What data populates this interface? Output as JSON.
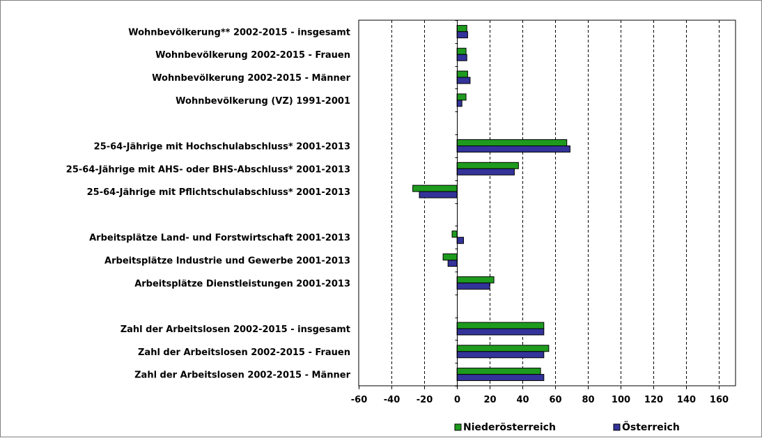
{
  "chart_data": {
    "type": "bar",
    "orientation": "horizontal",
    "categories": [
      "Wohnbevölkerung** 2002-2015 - insgesamt",
      "Wohnbevölkerung 2002-2015 - Frauen",
      "Wohnbevölkerung 2002-2015 - Männer",
      "Wohnbevölkerung (VZ) 1991-2001",
      "",
      "25-64-Jährige mit Hochschulabschluss* 2001-2013",
      "25-64-Jährige mit AHS- oder BHS-Abschluss* 2001-2013",
      "25-64-Jährige mit Pflichtschulabschluss* 2001-2013",
      "",
      "Arbeitsplätze Land- und Forstwirtschaft 2001-2013",
      "Arbeitsplätze Industrie und Gewerbe 2001-2013",
      "Arbeitsplätze Dienstleistungen 2001-2013",
      "",
      "Zahl der Arbeitslosen 2002-2015 - insgesamt",
      "Zahl der Arbeitslosen 2002-2015 - Frauen",
      "Zahl der Arbeitslosen 2002-2015 - Männer"
    ],
    "series": [
      {
        "name": "Niederösterreich",
        "color": "#1e9b1e",
        "values": [
          6,
          5.5,
          6.5,
          5.5,
          null,
          67,
          37.5,
          -27,
          null,
          -3,
          -8.5,
          22.5,
          null,
          53,
          56,
          51
        ]
      },
      {
        "name": "Österreich",
        "color": "#33339a",
        "values": [
          6.5,
          6,
          8,
          3,
          null,
          69,
          35,
          -23,
          null,
          4,
          -5.5,
          20,
          null,
          53,
          53,
          53
        ]
      }
    ],
    "xlim": [
      -60,
      170
    ],
    "xticks": [
      "-60",
      "-40",
      "-20",
      "0",
      "20",
      "40",
      "60",
      "80",
      "100",
      "120",
      "140",
      "160"
    ],
    "xgrid": "dashed",
    "title": "",
    "xlabel": "",
    "ylabel": "",
    "legend": "bottom"
  }
}
